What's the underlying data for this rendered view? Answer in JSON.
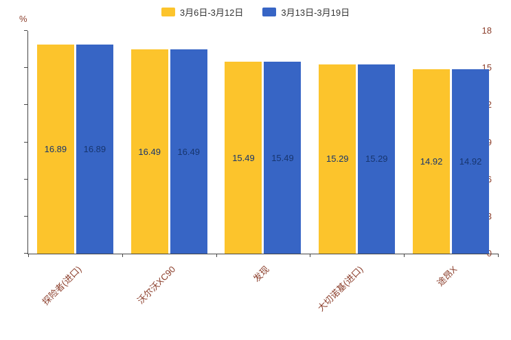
{
  "chart_data": {
    "type": "bar",
    "title": "",
    "categories": [
      "探险者(进口)",
      "沃尔沃XC90",
      "发现",
      "大切诺基(进口)",
      "途昂X"
    ],
    "series": [
      {
        "name": "3月6日-3月12日",
        "color": "#FCC42C",
        "values": [
          16.89,
          16.49,
          15.49,
          15.29,
          14.92
        ]
      },
      {
        "name": "3月13日-3月19日",
        "color": "#3765C5",
        "values": [
          16.89,
          16.49,
          15.49,
          15.29,
          14.92
        ]
      }
    ],
    "value_labels": [
      "16.89",
      "16.49",
      "15.49",
      "15.29",
      "14.92"
    ],
    "xlabel": "",
    "ylabel": "%",
    "ylim": [
      0,
      18
    ],
    "yticks": [
      0,
      3,
      6,
      9,
      12,
      15,
      18
    ],
    "grid": false,
    "legend_position": "top"
  },
  "colors": {
    "axis": "#444444",
    "tick_text": "#8B3E2B",
    "value_text": "#17356E",
    "legend_text": "#333333",
    "background": "#ffffff"
  }
}
